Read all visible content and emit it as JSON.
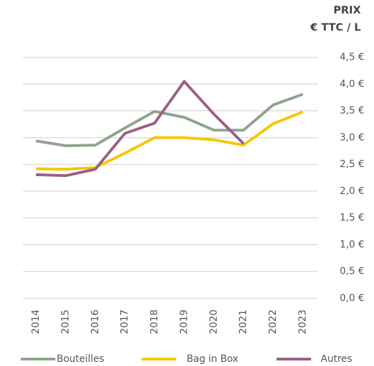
{
  "chart_data": {
    "type": "line",
    "title": "PRIX",
    "subtitle": "€ TTC / L",
    "categories": [
      "2014",
      "2015",
      "2016",
      "2017",
      "2018",
      "2019",
      "2020",
      "2021",
      "2022",
      "2023"
    ],
    "series": [
      {
        "name": "Bouteilles",
        "color": "#8fa38c",
        "values": [
          2.94,
          2.85,
          2.86,
          3.18,
          3.49,
          3.38,
          3.14,
          3.14,
          3.61,
          3.81
        ]
      },
      {
        "name": "Bag in Box",
        "color": "#f5c800",
        "values": [
          2.42,
          2.41,
          2.44,
          2.71,
          3.0,
          3.0,
          2.96,
          2.86,
          3.26,
          3.48
        ]
      },
      {
        "name": "Autres",
        "color": "#9c5f86",
        "values": [
          2.31,
          2.29,
          2.41,
          3.08,
          3.27,
          4.05,
          3.44,
          2.89,
          null,
          null
        ]
      }
    ],
    "ylim": [
      0,
      4.5
    ],
    "yticks": [
      {
        "value": 0,
        "label": "0,0 €"
      },
      {
        "value": 0.5,
        "label": "0,5 €"
      },
      {
        "value": 1,
        "label": "1,0 €"
      },
      {
        "value": 1.5,
        "label": "1,5 €"
      },
      {
        "value": 2,
        "label": "2,0 €"
      },
      {
        "value": 2.5,
        "label": "2,5 €"
      },
      {
        "value": 3,
        "label": "3,0 €"
      },
      {
        "value": 3.5,
        "label": "3,5 €"
      },
      {
        "value": 4,
        "label": "4,0 €"
      },
      {
        "value": 4.5,
        "label": "4,5 €"
      }
    ],
    "grid": true,
    "legend": "bottom"
  }
}
